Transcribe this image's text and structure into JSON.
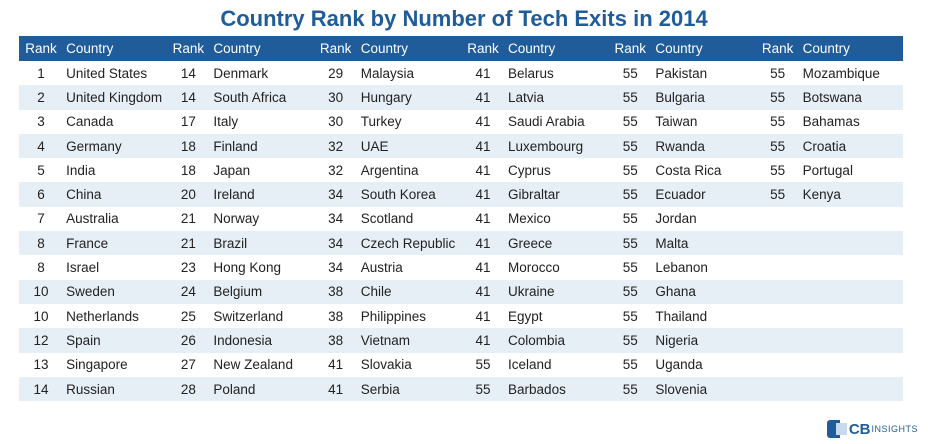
{
  "chart_data": {
    "type": "table",
    "title": "Country Rank by Number of Tech Exits in 2014",
    "column_headers": {
      "rank": "Rank",
      "country": "Country"
    },
    "columns": [
      [
        [
          "1",
          "United States"
        ],
        [
          "2",
          "United Kingdom"
        ],
        [
          "3",
          "Canada"
        ],
        [
          "4",
          "Germany"
        ],
        [
          "5",
          "India"
        ],
        [
          "6",
          "China"
        ],
        [
          "7",
          "Australia"
        ],
        [
          "8",
          "France"
        ],
        [
          "8",
          "Israel"
        ],
        [
          "10",
          "Sweden"
        ],
        [
          "10",
          "Netherlands"
        ],
        [
          "12",
          "Spain"
        ],
        [
          "13",
          "Singapore"
        ],
        [
          "14",
          "Russian"
        ]
      ],
      [
        [
          "14",
          "Denmark"
        ],
        [
          "14",
          "South Africa"
        ],
        [
          "17",
          "Italy"
        ],
        [
          "18",
          "Finland"
        ],
        [
          "18",
          "Japan"
        ],
        [
          "20",
          "Ireland"
        ],
        [
          "21",
          "Norway"
        ],
        [
          "21",
          "Brazil"
        ],
        [
          "23",
          "Hong Kong"
        ],
        [
          "24",
          "Belgium"
        ],
        [
          "25",
          "Switzerland"
        ],
        [
          "26",
          "Indonesia"
        ],
        [
          "27",
          "New Zealand"
        ],
        [
          "28",
          "Poland"
        ]
      ],
      [
        [
          "29",
          "Malaysia"
        ],
        [
          "30",
          "Hungary"
        ],
        [
          "30",
          "Turkey"
        ],
        [
          "32",
          "UAE"
        ],
        [
          "32",
          "Argentina"
        ],
        [
          "34",
          "South Korea"
        ],
        [
          "34",
          "Scotland"
        ],
        [
          "34",
          "Czech Republic"
        ],
        [
          "34",
          "Austria"
        ],
        [
          "38",
          "Chile"
        ],
        [
          "38",
          "Philippines"
        ],
        [
          "38",
          "Vietnam"
        ],
        [
          "41",
          "Slovakia"
        ],
        [
          "41",
          "Serbia"
        ]
      ],
      [
        [
          "41",
          "Belarus"
        ],
        [
          "41",
          "Latvia"
        ],
        [
          "41",
          "Saudi Arabia"
        ],
        [
          "41",
          "Luxembourg"
        ],
        [
          "41",
          "Cyprus"
        ],
        [
          "41",
          "Gibraltar"
        ],
        [
          "41",
          "Mexico"
        ],
        [
          "41",
          "Greece"
        ],
        [
          "41",
          "Morocco"
        ],
        [
          "41",
          "Ukraine"
        ],
        [
          "41",
          "Egypt"
        ],
        [
          "41",
          "Colombia"
        ],
        [
          "55",
          "Iceland"
        ],
        [
          "55",
          "Barbados"
        ]
      ],
      [
        [
          "55",
          "Pakistan"
        ],
        [
          "55",
          "Bulgaria"
        ],
        [
          "55",
          "Taiwan"
        ],
        [
          "55",
          "Rwanda"
        ],
        [
          "55",
          "Costa Rica"
        ],
        [
          "55",
          "Ecuador"
        ],
        [
          "55",
          "Jordan"
        ],
        [
          "55",
          "Malta"
        ],
        [
          "55",
          "Lebanon"
        ],
        [
          "55",
          "Ghana"
        ],
        [
          "55",
          "Thailand"
        ],
        [
          "55",
          "Nigeria"
        ],
        [
          "55",
          "Uganda"
        ],
        [
          "55",
          "Slovenia"
        ]
      ],
      [
        [
          "55",
          "Mozambique"
        ],
        [
          "55",
          "Botswana"
        ],
        [
          "55",
          "Bahamas"
        ],
        [
          "55",
          "Croatia"
        ],
        [
          "55",
          "Portugal"
        ],
        [
          "55",
          "Kenya"
        ]
      ]
    ]
  },
  "logo": {
    "brand": "CB",
    "suffix": "INSIGHTS"
  },
  "colors": {
    "header_bg": "#1f5c99",
    "stripe": "#e6eef6",
    "title": "#1f5c99"
  }
}
